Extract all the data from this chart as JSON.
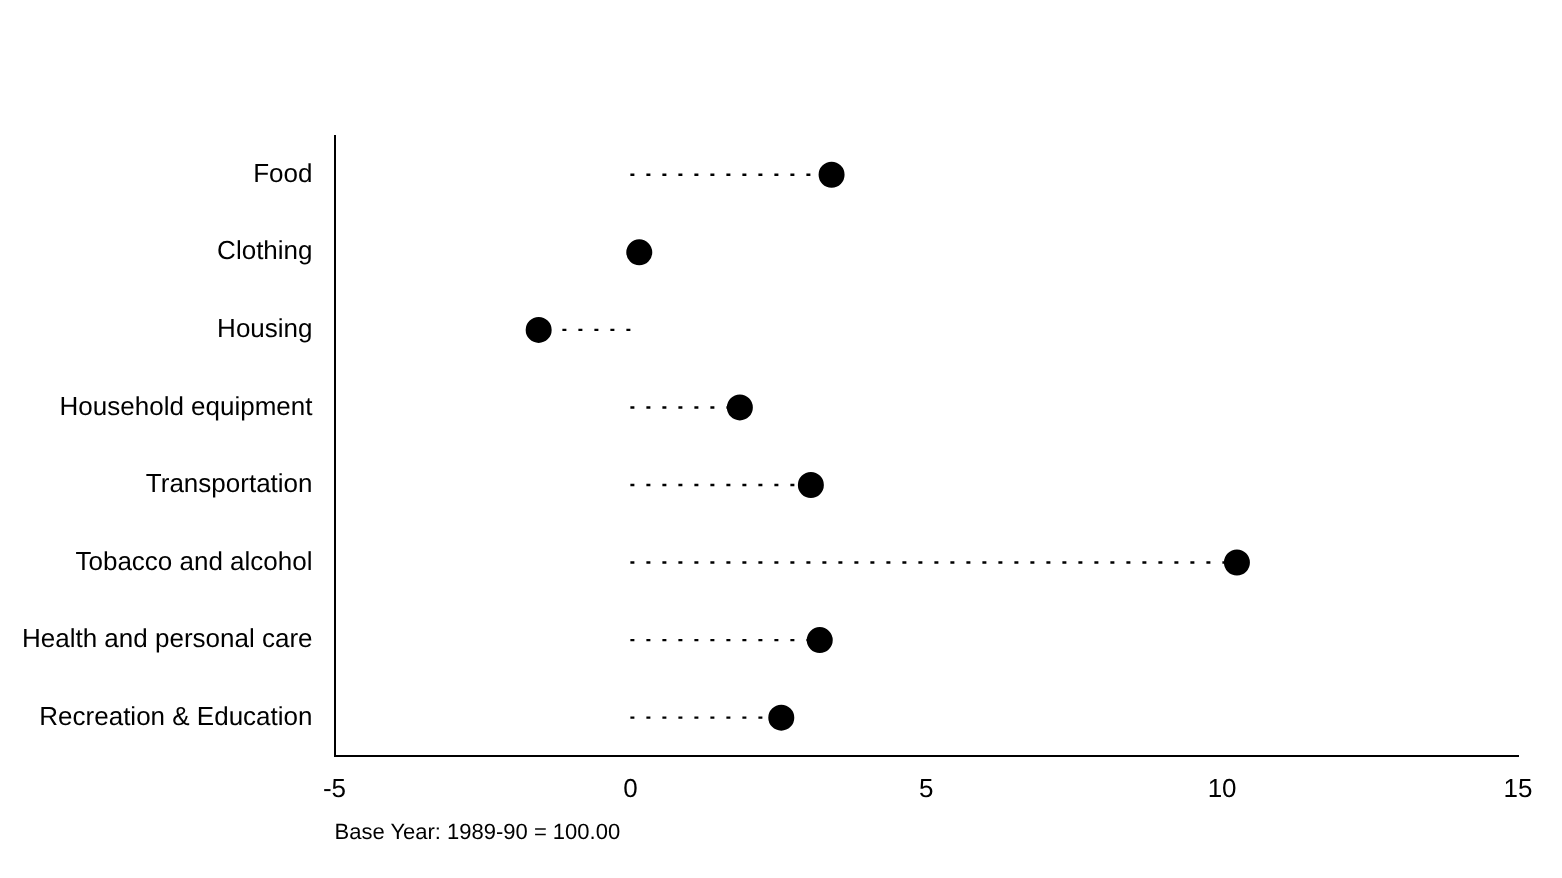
{
  "chart_data": {
    "type": "lollipop",
    "xlabel": "Base Year: 1989-90 = 100.00",
    "categories": [
      "Food",
      "Clothing",
      "Housing",
      "Household equipment",
      "Transportation",
      "Tobacco and alcohol",
      "Health and personal care",
      "Recreation & Education"
    ],
    "values": [
      3.4,
      0.15,
      -1.55,
      1.85,
      3.05,
      10.25,
      3.2,
      2.55
    ],
    "color": "#000000",
    "orientation": "horizontal",
    "xlim": [
      -5,
      15
    ],
    "xticks": [
      -5,
      0,
      5,
      10,
      15
    ],
    "grid": false,
    "legend": false,
    "marker": "circle",
    "line_style": "dotted"
  }
}
